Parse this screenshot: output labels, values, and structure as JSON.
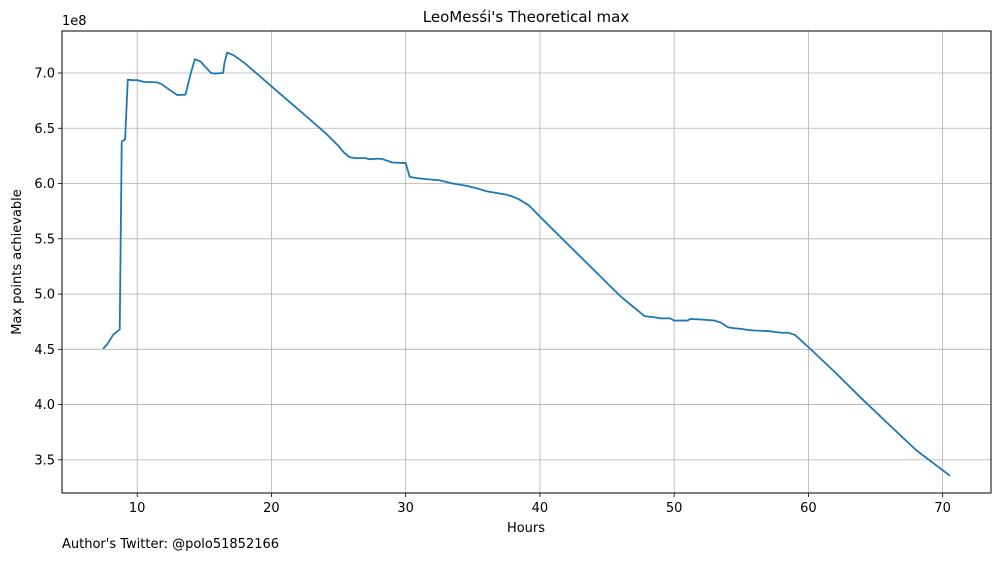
{
  "chart_data": {
    "type": "line",
    "title": "LeoMesśi's Theoretical max",
    "xlabel": "Hours",
    "ylabel": "Max points achievable",
    "offset_text": "1e8",
    "xlim": [
      4.4,
      73.6
    ],
    "ylim": [
      320000000,
      738000000
    ],
    "xticks": [
      10,
      20,
      30,
      40,
      50,
      60,
      70
    ],
    "xtick_labels": [
      "10",
      "20",
      "30",
      "40",
      "50",
      "60",
      "70"
    ],
    "yticks": [
      350000000,
      400000000,
      450000000,
      500000000,
      550000000,
      600000000,
      650000000,
      700000000
    ],
    "ytick_labels": [
      "3.5",
      "4.0",
      "4.5",
      "5.0",
      "5.5",
      "6.0",
      "6.5",
      "7.0"
    ],
    "grid": true,
    "line_color": "#1f77b4",
    "series": [
      {
        "x": [
          7.5,
          7.8,
          8.2,
          8.7,
          8.85,
          9.1,
          9.3,
          9.6,
          10.0,
          10.5,
          11.5,
          11.8,
          12.5,
          13.0,
          13.6,
          14.0,
          14.3,
          14.7,
          15.5,
          15.8,
          16.4,
          16.5,
          16.7,
          17.2,
          18.0,
          20.0,
          22.0,
          24.0,
          25.0,
          25.4,
          25.8,
          26.2,
          27.0,
          27.3,
          28.0,
          28.3,
          29.0,
          30.0,
          30.3,
          30.8,
          31.5,
          32.5,
          33.5,
          34.5,
          35.5,
          36.0,
          37.0,
          37.5,
          38.0,
          38.4,
          38.8,
          39.2,
          40.0,
          41.0,
          42.0,
          44.0,
          46.0,
          47.8,
          48.5,
          49.0,
          49.7,
          50.0,
          51.0,
          51.2,
          52.0,
          53.0,
          53.5,
          54.0,
          54.5,
          55.0,
          55.5,
          56.0,
          57.0,
          58.0,
          58.5,
          59.0,
          60.0,
          62.0,
          64.0,
          66.0,
          68.0,
          70.5
        ],
        "y": [
          451000000,
          455000000,
          463000000,
          468000000,
          638000000,
          640000000,
          694000000,
          693500000,
          693500000,
          692000000,
          691500000,
          690000000,
          684000000,
          680000000,
          680500000,
          700000000,
          712500000,
          710500000,
          700000000,
          699500000,
          700000000,
          709000000,
          718500000,
          716000000,
          709000000,
          688000000,
          667000000,
          646000000,
          634000000,
          628000000,
          624000000,
          623000000,
          623000000,
          622000000,
          622500000,
          622000000,
          619000000,
          618500000,
          606000000,
          605000000,
          604000000,
          603000000,
          600000000,
          598000000,
          595000000,
          593000000,
          591000000,
          590000000,
          588000000,
          586000000,
          583000000,
          580000000,
          570000000,
          558000000,
          546000000,
          522000000,
          498000000,
          480000000,
          479000000,
          478000000,
          478000000,
          476000000,
          476000000,
          477500000,
          477000000,
          476000000,
          474000000,
          470000000,
          469000000,
          468500000,
          467500000,
          467000000,
          466500000,
          465000000,
          465000000,
          463000000,
          452000000,
          429000000,
          405000000,
          382000000,
          359000000,
          336000000
        ]
      }
    ]
  },
  "footer": {
    "text": "Author's Twitter: @polo51852166"
  }
}
